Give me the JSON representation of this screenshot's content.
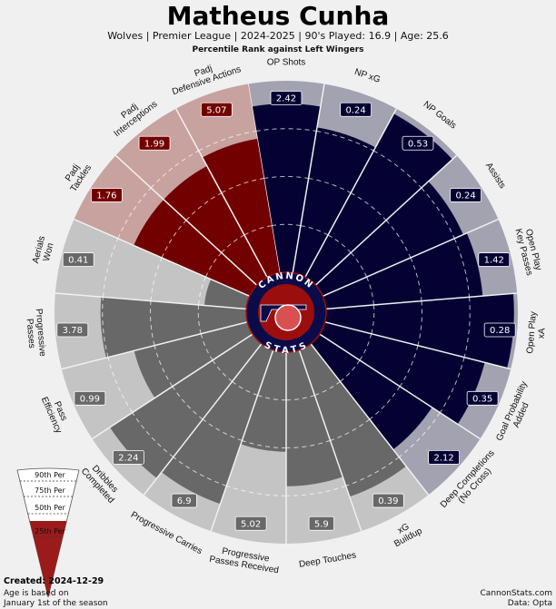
{
  "header": {
    "title": "Matheus Cunha",
    "subtitle": "Wolves  | Premier League | 2024-2025 | 90's Played: 16.9 | Age: 25.6",
    "comparison": "Percentile Rank against Left Wingers"
  },
  "logo": {
    "top": "CANNON",
    "bottom": "STATS"
  },
  "colors": {
    "background": "#f0f0f0",
    "attack": "#050233",
    "attack_bg": "#a3a2b1",
    "defense": "#720000",
    "defense_bg": "#c8a29f",
    "possession": "#686868",
    "possession_bg": "#c4c4c4",
    "logo_navy": "#0b0b4a",
    "logo_red": "#9b0e0e"
  },
  "chart_data": {
    "type": "pie",
    "subtype": "percentile-pizza",
    "title": "Matheus Cunha",
    "range": [
      0,
      100
    ],
    "gridlines": [
      25,
      50,
      75
    ],
    "slices": [
      {
        "label": "OP Shots",
        "value": "2.42",
        "percentile": 88,
        "group": "attack"
      },
      {
        "label": "NP xG",
        "value": "0.24",
        "percentile": 77,
        "group": "attack"
      },
      {
        "label": "NP Goals",
        "value": "0.53",
        "percentile": 97,
        "group": "attack"
      },
      {
        "label": "Assists",
        "value": "0.24",
        "percentile": 80,
        "group": "attack"
      },
      {
        "label": "Open Play\nKey Passes",
        "value": "1.42",
        "percentile": 82,
        "group": "attack"
      },
      {
        "label": "Open Play\nxA",
        "value": "0.28",
        "percentile": 98,
        "group": "attack"
      },
      {
        "label": "Goal Probability\nAdded",
        "value": "0.35",
        "percentile": 86,
        "group": "attack"
      },
      {
        "label": "Deep Completions\n(No Cross)",
        "value": "2.12",
        "percentile": 70,
        "group": "attack"
      },
      {
        "label": "xG\nBuildup",
        "value": "0.39",
        "percentile": 81,
        "group": "possession"
      },
      {
        "label": "Deep Touches",
        "value": "5.9",
        "percentile": 70,
        "group": "possession"
      },
      {
        "label": "Progressive\nPasses Received",
        "value": "5.02",
        "percentile": 52,
        "group": "possession"
      },
      {
        "label": "Progressive Carries",
        "value": "6.9",
        "percentile": 85,
        "group": "possession"
      },
      {
        "label": "Dribbles\nCompleted",
        "value": "2.24",
        "percentile": 89,
        "group": "possession"
      },
      {
        "label": "Pass\nEfficiency",
        "value": "0.99",
        "percentile": 61,
        "group": "possession"
      },
      {
        "label": "Progressive\nPasses",
        "value": "3.78",
        "percentile": 76,
        "group": "possession"
      },
      {
        "label": "Aerials\nWon",
        "value": "0.41",
        "percentile": 22,
        "group": "possession"
      },
      {
        "label": "Padj\nTackles",
        "value": "1.76",
        "percentile": 66,
        "group": "defense"
      },
      {
        "label": "Padj\nInterceptions",
        "value": "1.99",
        "percentile": 66,
        "group": "defense"
      },
      {
        "label": "Padj\nDefensive Actions",
        "value": "5.07",
        "percentile": 71,
        "group": "defense"
      }
    ]
  },
  "legend": {
    "labels": [
      "90th Per",
      "75th Per",
      "50th Per",
      "25th Per"
    ],
    "fill_percentile": 50
  },
  "footer": {
    "created": "Created: 2024-12-29",
    "age_note_1": "Age is based on",
    "age_note_2": "January 1st of the season",
    "site": "CannonStats.com",
    "source": "Data: Opta"
  }
}
